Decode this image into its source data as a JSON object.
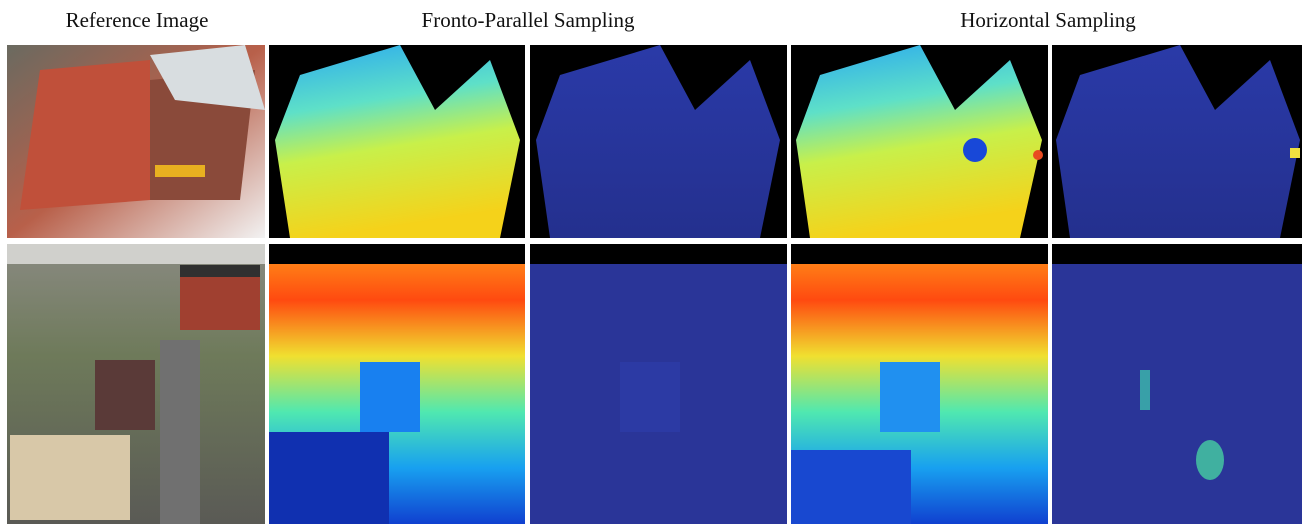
{
  "header": {
    "reference": "Reference Image",
    "fronto": "Fronto-Parallel Sampling",
    "horizontal": "Horizontal Sampling"
  }
}
